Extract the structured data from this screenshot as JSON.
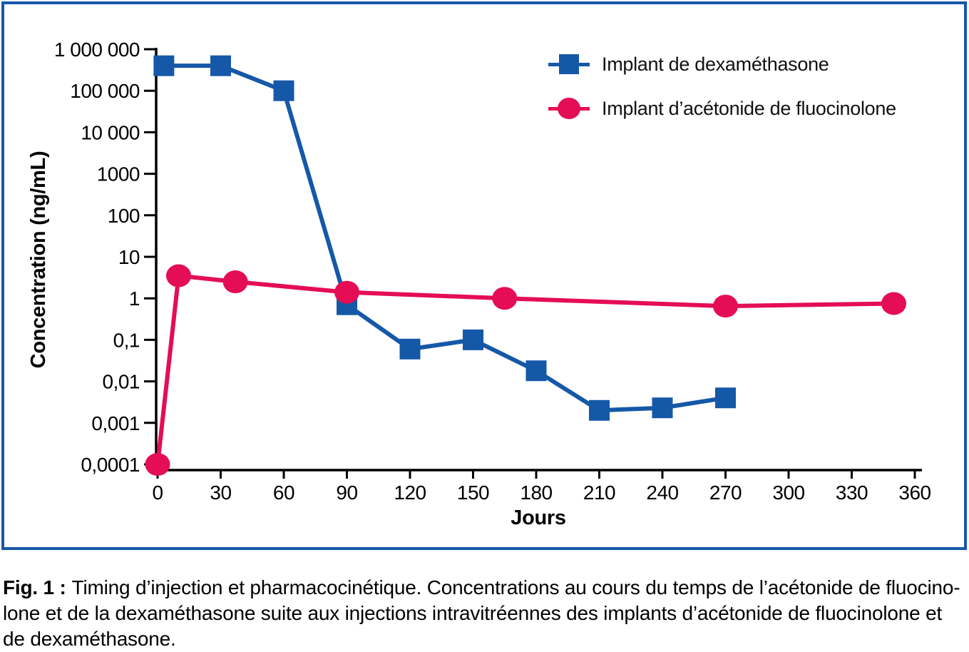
{
  "figure": {
    "border_color": "#1558a8",
    "background": "#ffffff",
    "caption": {
      "prefix": "Fig. 1 :",
      "line1": "Timing d’injection et pharmacocinétique. Concentrations au cours du temps de l’acétonide de fluocino-",
      "line2": "lone et de la dexaméthasone suite aux injections intravitréennes des implants d’acétonide de fluocinolone et",
      "line3": "de dexaméthasone."
    }
  },
  "chart_data": {
    "type": "line",
    "title": "",
    "xlabel": "Jours",
    "ylabel": "Concentration (ng/mL)",
    "grid": false,
    "legend_position": "top-right",
    "x_axis": {
      "min": 0,
      "max": 360,
      "tick_interval": 30,
      "ticks": [
        0,
        30,
        60,
        90,
        120,
        150,
        180,
        210,
        240,
        270,
        300,
        330,
        360
      ]
    },
    "y_axis": {
      "scale": "log",
      "min": 0.0001,
      "max": 1000000,
      "unit": "ng/mL",
      "tick_values": [
        1000000,
        100000,
        10000,
        1000,
        100,
        10,
        1,
        0.1,
        0.01,
        0.001,
        0.0001
      ],
      "tick_labels": [
        "1 000 000",
        "100 000",
        "10 000",
        "1000",
        "100",
        "10",
        "1",
        "0,1",
        "0,01",
        "0,001",
        "0,0001"
      ]
    },
    "series": [
      {
        "name": "Implant de dexaméthasone",
        "color": "#1558a8",
        "marker": "square",
        "points": [
          [
            3,
            400000
          ],
          [
            30,
            400000
          ],
          [
            60,
            100000
          ],
          [
            90,
            0.7
          ],
          [
            120,
            0.06
          ],
          [
            150,
            0.1
          ],
          [
            180,
            0.018
          ],
          [
            210,
            0.002
          ],
          [
            240,
            0.0023
          ],
          [
            270,
            0.004
          ]
        ]
      },
      {
        "name": "Implant d’acétonide de fluocinolone",
        "color": "#e40d56",
        "marker": "circle",
        "points": [
          [
            0,
            0.0001
          ],
          [
            10,
            3.5
          ],
          [
            37,
            2.5
          ],
          [
            90,
            1.4
          ],
          [
            165,
            1.0
          ],
          [
            270,
            0.65
          ],
          [
            350,
            0.75
          ]
        ]
      }
    ]
  }
}
